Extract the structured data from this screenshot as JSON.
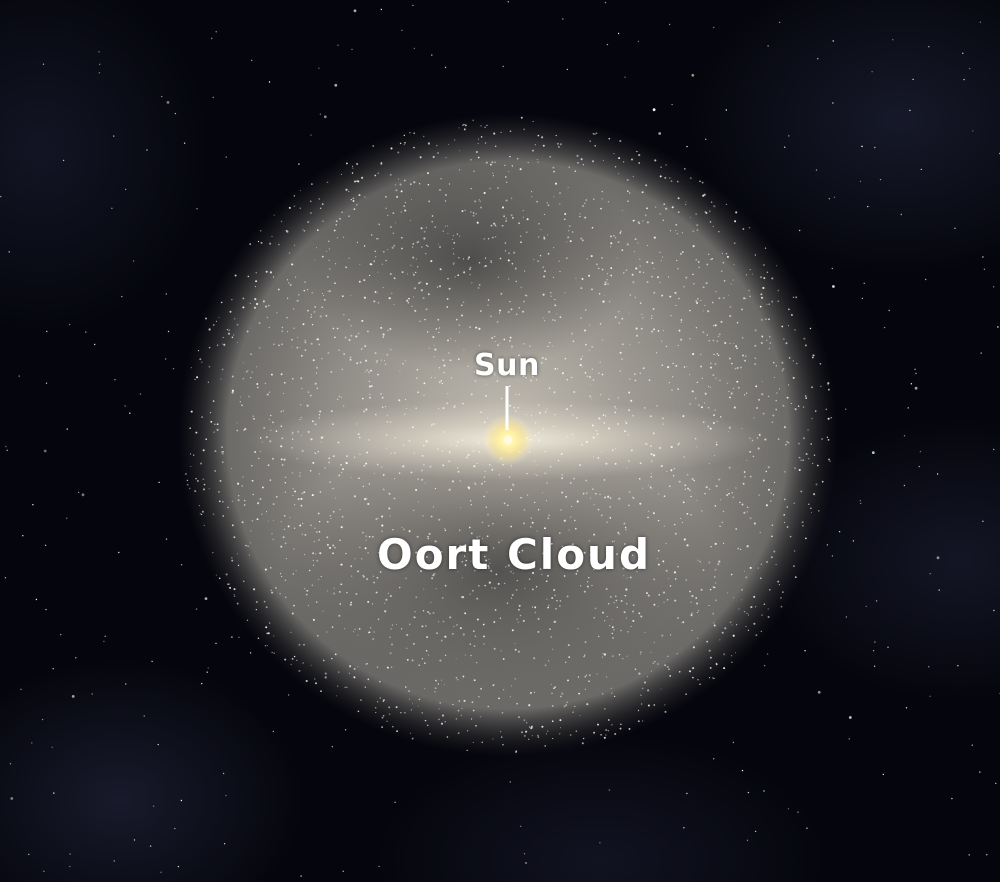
{
  "labels": {
    "sun": "Sun",
    "oort_cloud": "Oort Cloud"
  },
  "colors": {
    "space_background": "#05060d",
    "cloud_core": "#d8d2c6",
    "sun_glow": "#fff4c0",
    "label_text": "#ffffff"
  }
}
